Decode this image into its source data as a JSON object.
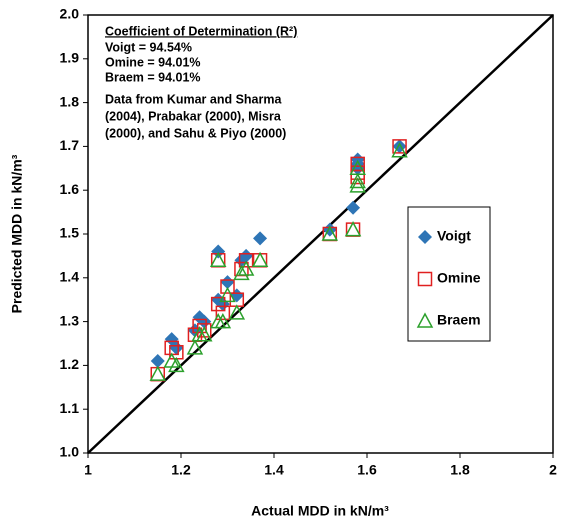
{
  "chart_data": {
    "type": "scatter",
    "x_label": "Actual MDD in kN/m³",
    "y_label": "Predicted MDD in kN/m³",
    "xlim": [
      1,
      2
    ],
    "ylim": [
      1,
      2
    ],
    "xticks": [
      1,
      1.2,
      1.4,
      1.6,
      1.8,
      2
    ],
    "yticks": [
      {
        "value": 1,
        "label": "1.0"
      },
      1.1,
      1.2,
      1.3,
      1.4,
      1.5,
      1.6,
      1.7,
      1.8,
      1.9,
      {
        "value": 2,
        "label": "2.0"
      }
    ],
    "annotation": {
      "heading": "Coefficient of Determination (R²)",
      "lines": [
        "Voigt = 94.54%",
        "Omine = 94.01%",
        "Braem = 94.01%"
      ],
      "note_lines": [
        "Data from Kumar and Sharma",
        "(2004), Prabakar (2000), Misra",
        "(2000), and Sahu & Piyo (2000)"
      ]
    },
    "series": [
      {
        "name": "Voigt",
        "color": "#2e75b6",
        "marker": "diamond",
        "x": [
          1.15,
          1.18,
          1.19,
          1.23,
          1.24,
          1.25,
          1.28,
          1.28,
          1.29,
          1.3,
          1.32,
          1.33,
          1.34,
          1.37,
          1.52,
          1.57,
          1.58,
          1.58,
          1.58,
          1.67
        ],
        "values": [
          1.21,
          1.26,
          1.24,
          1.28,
          1.31,
          1.3,
          1.35,
          1.46,
          1.34,
          1.39,
          1.36,
          1.44,
          1.45,
          1.49,
          1.51,
          1.56,
          1.67,
          1.66,
          1.65,
          1.7
        ]
      },
      {
        "name": "Omine",
        "color": "#e02020",
        "marker": "square",
        "x": [
          1.15,
          1.18,
          1.19,
          1.23,
          1.24,
          1.25,
          1.28,
          1.28,
          1.29,
          1.3,
          1.32,
          1.33,
          1.34,
          1.37,
          1.52,
          1.57,
          1.58,
          1.58,
          1.58,
          1.67
        ],
        "values": [
          1.18,
          1.24,
          1.23,
          1.27,
          1.29,
          1.28,
          1.34,
          1.44,
          1.32,
          1.38,
          1.35,
          1.42,
          1.44,
          1.44,
          1.5,
          1.51,
          1.66,
          1.64,
          1.63,
          1.7
        ]
      },
      {
        "name": "Braem",
        "color": "#2ca02c",
        "marker": "triangle",
        "x": [
          1.15,
          1.18,
          1.19,
          1.23,
          1.24,
          1.25,
          1.28,
          1.28,
          1.29,
          1.3,
          1.32,
          1.33,
          1.34,
          1.37,
          1.52,
          1.57,
          1.58,
          1.58,
          1.58,
          1.67
        ],
        "values": [
          1.18,
          1.21,
          1.2,
          1.24,
          1.27,
          1.27,
          1.3,
          1.44,
          1.3,
          1.36,
          1.32,
          1.41,
          1.42,
          1.44,
          1.5,
          1.51,
          1.65,
          1.62,
          1.61,
          1.69
        ]
      }
    ]
  }
}
